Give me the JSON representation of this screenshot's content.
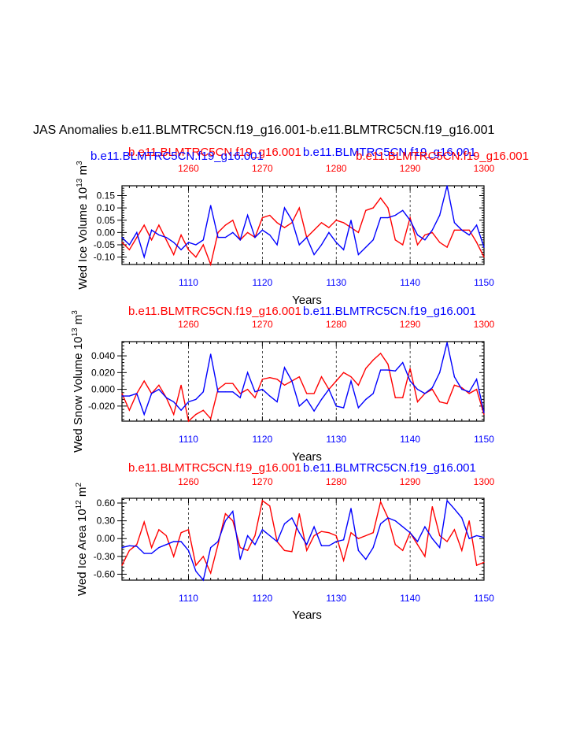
{
  "title": "JAS Anomalies b.e11.BLMTRC5CN.f19_g16.001-b.e11.BLMTRC5CN.f19_g16.001",
  "colors": {
    "series_red": "#ff0000",
    "series_blue": "#0000ff",
    "axis": "#000000"
  },
  "chart_data": [
    {
      "type": "line",
      "name": "volume-panel",
      "ylabel": "Wed Ice Volume 10",
      "ylabel_exp": "13",
      "ylabel_unit": " m",
      "ylabel_unit_exp": "3",
      "xlabel": "Years",
      "legend_red": "b.e11.BLMTRC5CN.f19_g16.001",
      "legend_blue": "b.e11.BLMTRC5CN.f19_g16.001",
      "legend_blue_left": "b.e11.BLMTRC5CN.f19_g16.001",
      "legend_red_right": "b.e11.BLMTRC5CN.f19_g16.001",
      "xlim_bottom": [
        1101,
        1150
      ],
      "xlim_top": [
        1251,
        1300
      ],
      "xticks_bottom": [
        "1110",
        "1120",
        "1130",
        "1140",
        "1150"
      ],
      "xticks_top": [
        "1260",
        "1270",
        "1280",
        "1290",
        "1300"
      ],
      "ylim": [
        -0.13,
        0.19
      ],
      "yticks": [
        0.15,
        0.1,
        0.05,
        0.0,
        -0.05,
        -0.1
      ],
      "ytick_labels": [
        "0.15",
        "0.10",
        "0.05",
        "0.00",
        "-0.05",
        "-0.10"
      ],
      "series": [
        {
          "name": "red",
          "x_axis": "top",
          "values": [
            -0.04,
            -0.07,
            -0.02,
            0.03,
            -0.03,
            0.03,
            -0.03,
            -0.09,
            -0.01,
            -0.07,
            -0.1,
            -0.05,
            -0.13,
            0.0,
            0.03,
            0.05,
            -0.03,
            0.0,
            -0.02,
            0.06,
            0.07,
            0.04,
            0.02,
            0.04,
            0.1,
            -0.02,
            0.01,
            0.04,
            0.02,
            0.05,
            0.04,
            0.02,
            0.0,
            0.09,
            0.1,
            0.14,
            0.1,
            -0.03,
            -0.05,
            0.06,
            -0.05,
            -0.01,
            0.0,
            -0.04,
            -0.06,
            0.01,
            0.01,
            0.01,
            -0.04,
            -0.1
          ]
        },
        {
          "name": "blue",
          "x_axis": "bottom",
          "values": [
            -0.02,
            -0.05,
            0.0,
            -0.1,
            0.01,
            -0.01,
            -0.02,
            -0.04,
            -0.07,
            -0.04,
            -0.05,
            -0.03,
            0.11,
            -0.02,
            -0.02,
            0.0,
            -0.03,
            0.07,
            -0.02,
            0.01,
            -0.01,
            -0.05,
            0.1,
            0.05,
            -0.05,
            -0.02,
            -0.09,
            -0.05,
            0.0,
            -0.04,
            -0.07,
            0.05,
            -0.09,
            -0.06,
            -0.03,
            0.06,
            0.06,
            0.07,
            0.09,
            0.05,
            -0.01,
            -0.03,
            0.01,
            0.07,
            0.19,
            0.04,
            0.01,
            -0.01,
            0.03,
            -0.06
          ]
        }
      ]
    },
    {
      "type": "line",
      "name": "snow-panel",
      "ylabel": "Wed Snow Volume 10",
      "ylabel_exp": "13",
      "ylabel_unit": " m",
      "ylabel_unit_exp": "3",
      "xlabel": "Years",
      "legend_red": "b.e11.BLMTRC5CN.f19_g16.001",
      "legend_blue": "b.e11.BLMTRC5CN.f19_g16.001",
      "xlim_bottom": [
        1101,
        1150
      ],
      "xlim_top": [
        1251,
        1300
      ],
      "xticks_bottom": [
        "1110",
        "1120",
        "1130",
        "1140",
        "1150"
      ],
      "xticks_top": [
        "1260",
        "1270",
        "1280",
        "1290",
        "1300"
      ],
      "ylim": [
        -0.038,
        0.057
      ],
      "yticks": [
        0.04,
        0.02,
        0.0,
        -0.02
      ],
      "ytick_labels": [
        "0.040",
        "0.020",
        "0.000",
        "-0.020"
      ],
      "series": [
        {
          "name": "red",
          "x_axis": "top",
          "values": [
            -0.005,
            -0.025,
            -0.005,
            0.01,
            -0.005,
            0.005,
            -0.01,
            -0.03,
            0.005,
            -0.038,
            -0.03,
            -0.025,
            -0.035,
            0.0,
            0.007,
            0.007,
            -0.005,
            0.0,
            -0.01,
            0.012,
            0.014,
            0.012,
            0.005,
            0.01,
            0.015,
            -0.005,
            -0.005,
            0.015,
            0.0,
            0.01,
            0.02,
            0.015,
            0.005,
            0.025,
            0.035,
            0.043,
            0.03,
            -0.01,
            -0.01,
            0.025,
            -0.015,
            -0.005,
            0.0,
            -0.015,
            -0.017,
            0.005,
            0.002,
            -0.005,
            0.0,
            -0.03
          ]
        },
        {
          "name": "blue",
          "x_axis": "bottom",
          "values": [
            -0.008,
            -0.008,
            -0.005,
            -0.03,
            -0.005,
            0.0,
            -0.01,
            -0.015,
            -0.025,
            -0.015,
            -0.012,
            -0.003,
            0.042,
            -0.003,
            -0.003,
            -0.003,
            -0.01,
            0.02,
            -0.003,
            0.0,
            -0.008,
            -0.015,
            0.026,
            0.01,
            -0.02,
            -0.012,
            -0.026,
            -0.012,
            0.0,
            -0.02,
            -0.022,
            0.01,
            -0.022,
            -0.012,
            -0.005,
            0.023,
            0.023,
            0.022,
            0.032,
            0.01,
            0.0,
            -0.005,
            0.002,
            0.02,
            0.056,
            0.015,
            0.0,
            -0.003,
            0.012,
            -0.028
          ]
        }
      ]
    },
    {
      "type": "line",
      "name": "area-panel",
      "ylabel": "Wed Ice Area 10",
      "ylabel_exp": "12",
      "ylabel_unit": " m",
      "ylabel_unit_exp": "2",
      "xlabel": "Years",
      "legend_red": "b.e11.BLMTRC5CN.f19_g16.001",
      "legend_blue": "b.e11.BLMTRC5CN.f19_g16.001",
      "xlim_bottom": [
        1101,
        1150
      ],
      "xlim_top": [
        1251,
        1300
      ],
      "xticks_bottom": [
        "1110",
        "1120",
        "1130",
        "1140",
        "1150"
      ],
      "xticks_top": [
        "1260",
        "1270",
        "1280",
        "1290",
        "1300"
      ],
      "ylim": [
        -0.7,
        0.68
      ],
      "yticks": [
        0.6,
        0.3,
        0.0,
        -0.3,
        -0.6
      ],
      "ytick_labels": [
        "0.60",
        "0.30",
        "0.00",
        "-0.30",
        "-0.60"
      ],
      "series": [
        {
          "name": "red",
          "x_axis": "top",
          "values": [
            -0.45,
            -0.2,
            -0.1,
            0.28,
            -0.15,
            0.15,
            0.05,
            -0.3,
            0.1,
            0.15,
            -0.45,
            -0.3,
            -0.58,
            -0.1,
            0.42,
            0.3,
            -0.15,
            -0.2,
            0.05,
            0.64,
            0.55,
            -0.05,
            -0.2,
            -0.22,
            0.42,
            -0.2,
            0.05,
            0.12,
            0.1,
            0.05,
            -0.37,
            0.1,
            0.0,
            0.05,
            0.1,
            0.62,
            0.35,
            -0.1,
            -0.2,
            0.1,
            -0.1,
            -0.3,
            0.54,
            0.05,
            -0.05,
            0.15,
            -0.2,
            0.3,
            -0.45,
            -0.4
          ]
        },
        {
          "name": "blue",
          "x_axis": "bottom",
          "values": [
            -0.15,
            -0.12,
            -0.13,
            -0.25,
            -0.25,
            -0.15,
            -0.1,
            -0.05,
            -0.05,
            -0.2,
            -0.55,
            -0.7,
            -0.15,
            -0.05,
            0.3,
            0.46,
            -0.35,
            0.05,
            -0.1,
            0.15,
            0.05,
            -0.05,
            0.25,
            0.35,
            0.1,
            -0.1,
            0.2,
            -0.12,
            -0.12,
            -0.05,
            -0.02,
            0.51,
            -0.2,
            -0.35,
            -0.15,
            0.25,
            0.35,
            0.3,
            0.2,
            0.1,
            -0.05,
            0.2,
            0.0,
            -0.15,
            0.64,
            0.5,
            0.35,
            0.0,
            0.05,
            0.02
          ]
        }
      ]
    }
  ]
}
